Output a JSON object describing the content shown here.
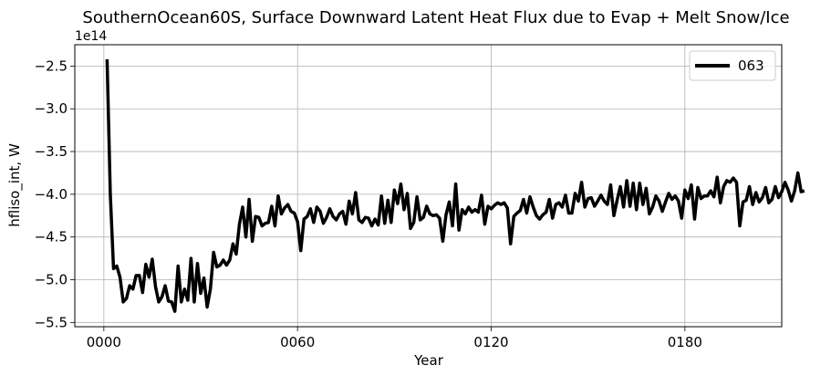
{
  "chart_data": {
    "type": "line",
    "title": "SouthernOcean60S, Surface Downward Latent Heat Flux due to Evap + Melt Snow/Ice",
    "xlabel": "Year",
    "ylabel": "hfliso_int, W",
    "y_offset_label": "1e14",
    "xlim": [
      -9,
      210
    ],
    "ylim": [
      -5.55,
      -2.25
    ],
    "x_ticks": [
      0,
      60,
      120,
      180
    ],
    "x_tick_labels": [
      "0000",
      "0060",
      "0120",
      "0180"
    ],
    "y_ticks": [
      -5.5,
      -5.0,
      -4.5,
      -4.0,
      -3.5,
      -3.0,
      -2.5
    ],
    "y_tick_labels": [
      "−5.5",
      "−5.0",
      "−4.5",
      "−4.0",
      "−3.5",
      "−3.0",
      "−2.5"
    ],
    "grid": true,
    "legend_position": "top-right",
    "series": [
      {
        "name": "063",
        "color": "#000000",
        "x_start": 1,
        "x_step": 1,
        "values": [
          -2.42,
          -4.0,
          -4.87,
          -4.84,
          -4.97,
          -5.26,
          -5.22,
          -5.07,
          -5.11,
          -4.95,
          -4.95,
          -5.15,
          -4.82,
          -4.97,
          -4.76,
          -5.08,
          -5.26,
          -5.2,
          -5.07,
          -5.25,
          -5.26,
          -5.37,
          -4.84,
          -5.26,
          -5.11,
          -5.24,
          -4.75,
          -5.26,
          -4.81,
          -5.16,
          -4.98,
          -5.32,
          -5.11,
          -4.68,
          -4.85,
          -4.83,
          -4.77,
          -4.83,
          -4.77,
          -4.58,
          -4.7,
          -4.35,
          -4.15,
          -4.5,
          -4.06,
          -4.55,
          -4.26,
          -4.27,
          -4.37,
          -4.34,
          -4.33,
          -4.14,
          -4.37,
          -4.02,
          -4.23,
          -4.16,
          -4.12,
          -4.2,
          -4.22,
          -4.32,
          -4.66,
          -4.29,
          -4.26,
          -4.17,
          -4.33,
          -4.15,
          -4.2,
          -4.34,
          -4.27,
          -4.17,
          -4.26,
          -4.3,
          -4.23,
          -4.2,
          -4.35,
          -4.08,
          -4.23,
          -3.98,
          -4.3,
          -4.33,
          -4.27,
          -4.28,
          -4.37,
          -4.29,
          -4.36,
          -4.02,
          -4.34,
          -4.07,
          -4.33,
          -3.95,
          -4.11,
          -3.88,
          -4.18,
          -3.99,
          -4.4,
          -4.33,
          -4.03,
          -4.3,
          -4.27,
          -4.14,
          -4.23,
          -4.25,
          -4.24,
          -4.28,
          -4.55,
          -4.24,
          -4.09,
          -4.37,
          -3.88,
          -4.42,
          -4.18,
          -4.23,
          -4.15,
          -4.21,
          -4.18,
          -4.21,
          -4.01,
          -4.35,
          -4.14,
          -4.17,
          -4.13,
          -4.1,
          -4.12,
          -4.1,
          -4.16,
          -4.58,
          -4.26,
          -4.22,
          -4.19,
          -4.06,
          -4.22,
          -4.03,
          -4.15,
          -4.25,
          -4.29,
          -4.24,
          -4.21,
          -4.06,
          -4.28,
          -4.12,
          -4.1,
          -4.15,
          -4.01,
          -4.22,
          -4.22,
          -3.99,
          -4.08,
          -3.86,
          -4.15,
          -4.05,
          -4.04,
          -4.14,
          -4.08,
          -4.01,
          -4.08,
          -4.12,
          -3.89,
          -4.25,
          -4.07,
          -3.91,
          -4.15,
          -3.84,
          -4.14,
          -3.87,
          -4.18,
          -3.87,
          -4.12,
          -3.93,
          -4.23,
          -4.15,
          -4.02,
          -4.08,
          -4.2,
          -4.09,
          -3.99,
          -4.06,
          -4.02,
          -4.08,
          -4.28,
          -3.95,
          -4.05,
          -3.89,
          -4.29,
          -3.92,
          -4.05,
          -4.02,
          -4.02,
          -3.96,
          -4.03,
          -3.8,
          -4.1,
          -3.91,
          -3.84,
          -3.86,
          -3.81,
          -3.86,
          -4.37,
          -4.09,
          -4.07,
          -3.91,
          -4.12,
          -3.98,
          -4.09,
          -4.04,
          -3.92,
          -4.1,
          -4.06,
          -3.91,
          -4.04,
          -3.97,
          -3.86,
          -3.95,
          -4.08,
          -3.96,
          -3.75,
          -3.97,
          -3.96
        ]
      }
    ]
  }
}
